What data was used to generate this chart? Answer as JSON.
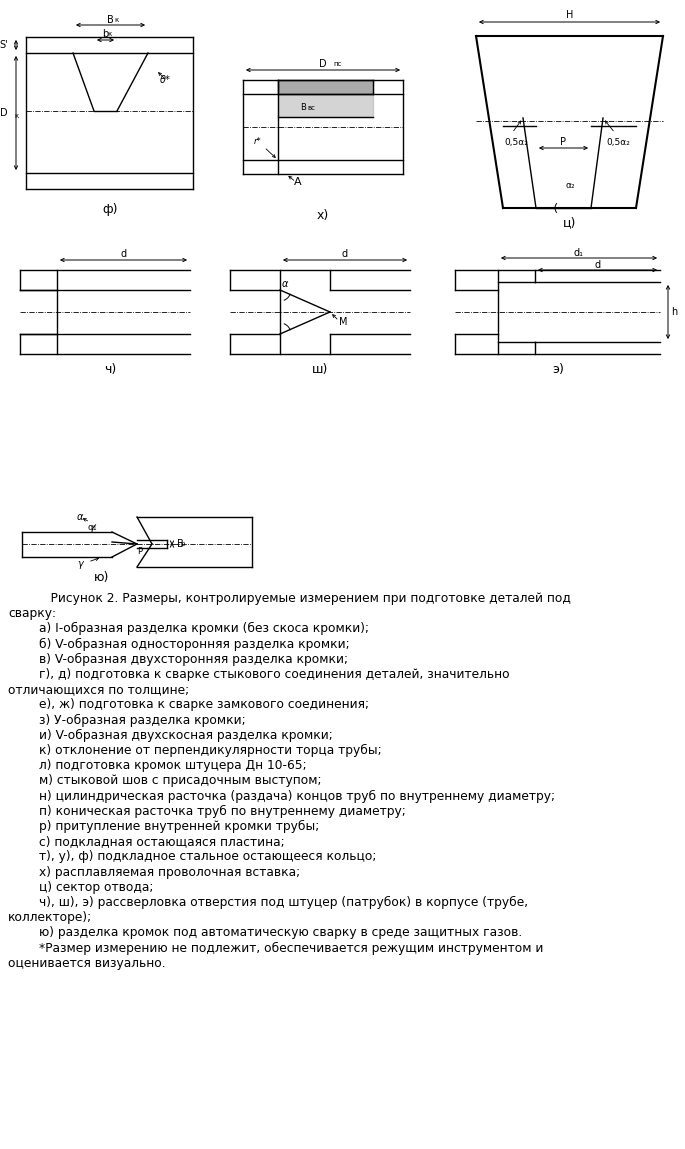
{
  "bg_color": "#ffffff",
  "text_color": "#000000",
  "caption_line1": "    Рисунок 2. Размеры, контролируемые измерением при подготовке деталей под",
  "caption_line2": "сварку:",
  "items": [
    "        а) I-образная разделка кромки (без скоса кромки);",
    "        б) V-образная односторонняя разделка кромки;",
    "        в) V-образная двухсторонняя разделка кромки;",
    "        г), д) подготовка к сварке стыкового соединения деталей, значительно",
    "отличающихся по толщине;",
    "        е), ж) подготовка к сварке замкового соединения;",
    "        з) У-образная разделка кромки;",
    "        и) V-образная двухскосная разделка кромки;",
    "        к) отклонение от перпендикулярности торца трубы;",
    "        л) подготовка кромок штуцера Дн 10-65;",
    "        м) стыковой шов с присадочным выступом;",
    "        н) цилиндрическая расточка (раздача) концов труб по внутреннему диаметру;",
    "        п) коническая расточка труб по внутреннему диаметру;",
    "        р) притупление внутренней кромки трубы;",
    "        с) подкладная остающаяся пластина;",
    "        т), у), ф) подкладное стальное остающееся кольцо;",
    "        х) расплавляемая проволочная вставка;",
    "        ц) сектор отвода;",
    "        ч), ш), э) рассверловка отверстия под штуцер (патрубок) в корпусе (трубе,",
    "коллекторе);",
    "        ю) разделка кромок под автоматическую сварку в среде защитных газов.",
    "        *Размер измерению не подлежит, обеспечивается режущим инструментом и",
    "оценивается визуально."
  ],
  "lw": 1.0
}
